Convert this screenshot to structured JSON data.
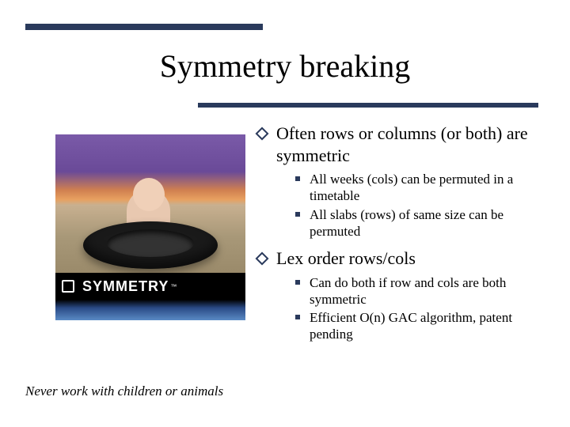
{
  "colors": {
    "accent": "#2a3a5c",
    "background": "#ffffff",
    "text": "#000000",
    "banner_bg": "#000000",
    "banner_text": "#ffffff"
  },
  "title": "Symmetry breaking",
  "image": {
    "banner_label": "SYMMETRY",
    "trademark": "™",
    "caption": "Never work with children or animals"
  },
  "bullets": [
    {
      "text": "Often rows or columns (or both) are symmetric",
      "children": [
        {
          "text": "All weeks (cols) can be permuted in a timetable"
        },
        {
          "text": "All slabs (rows) of same size can be permuted"
        }
      ]
    },
    {
      "text": "Lex order rows/cols",
      "children": [
        {
          "text": "Can do both if row and cols are both symmetric"
        },
        {
          "text": "Efficient O(n) GAC algorithm, patent pending"
        }
      ]
    }
  ]
}
